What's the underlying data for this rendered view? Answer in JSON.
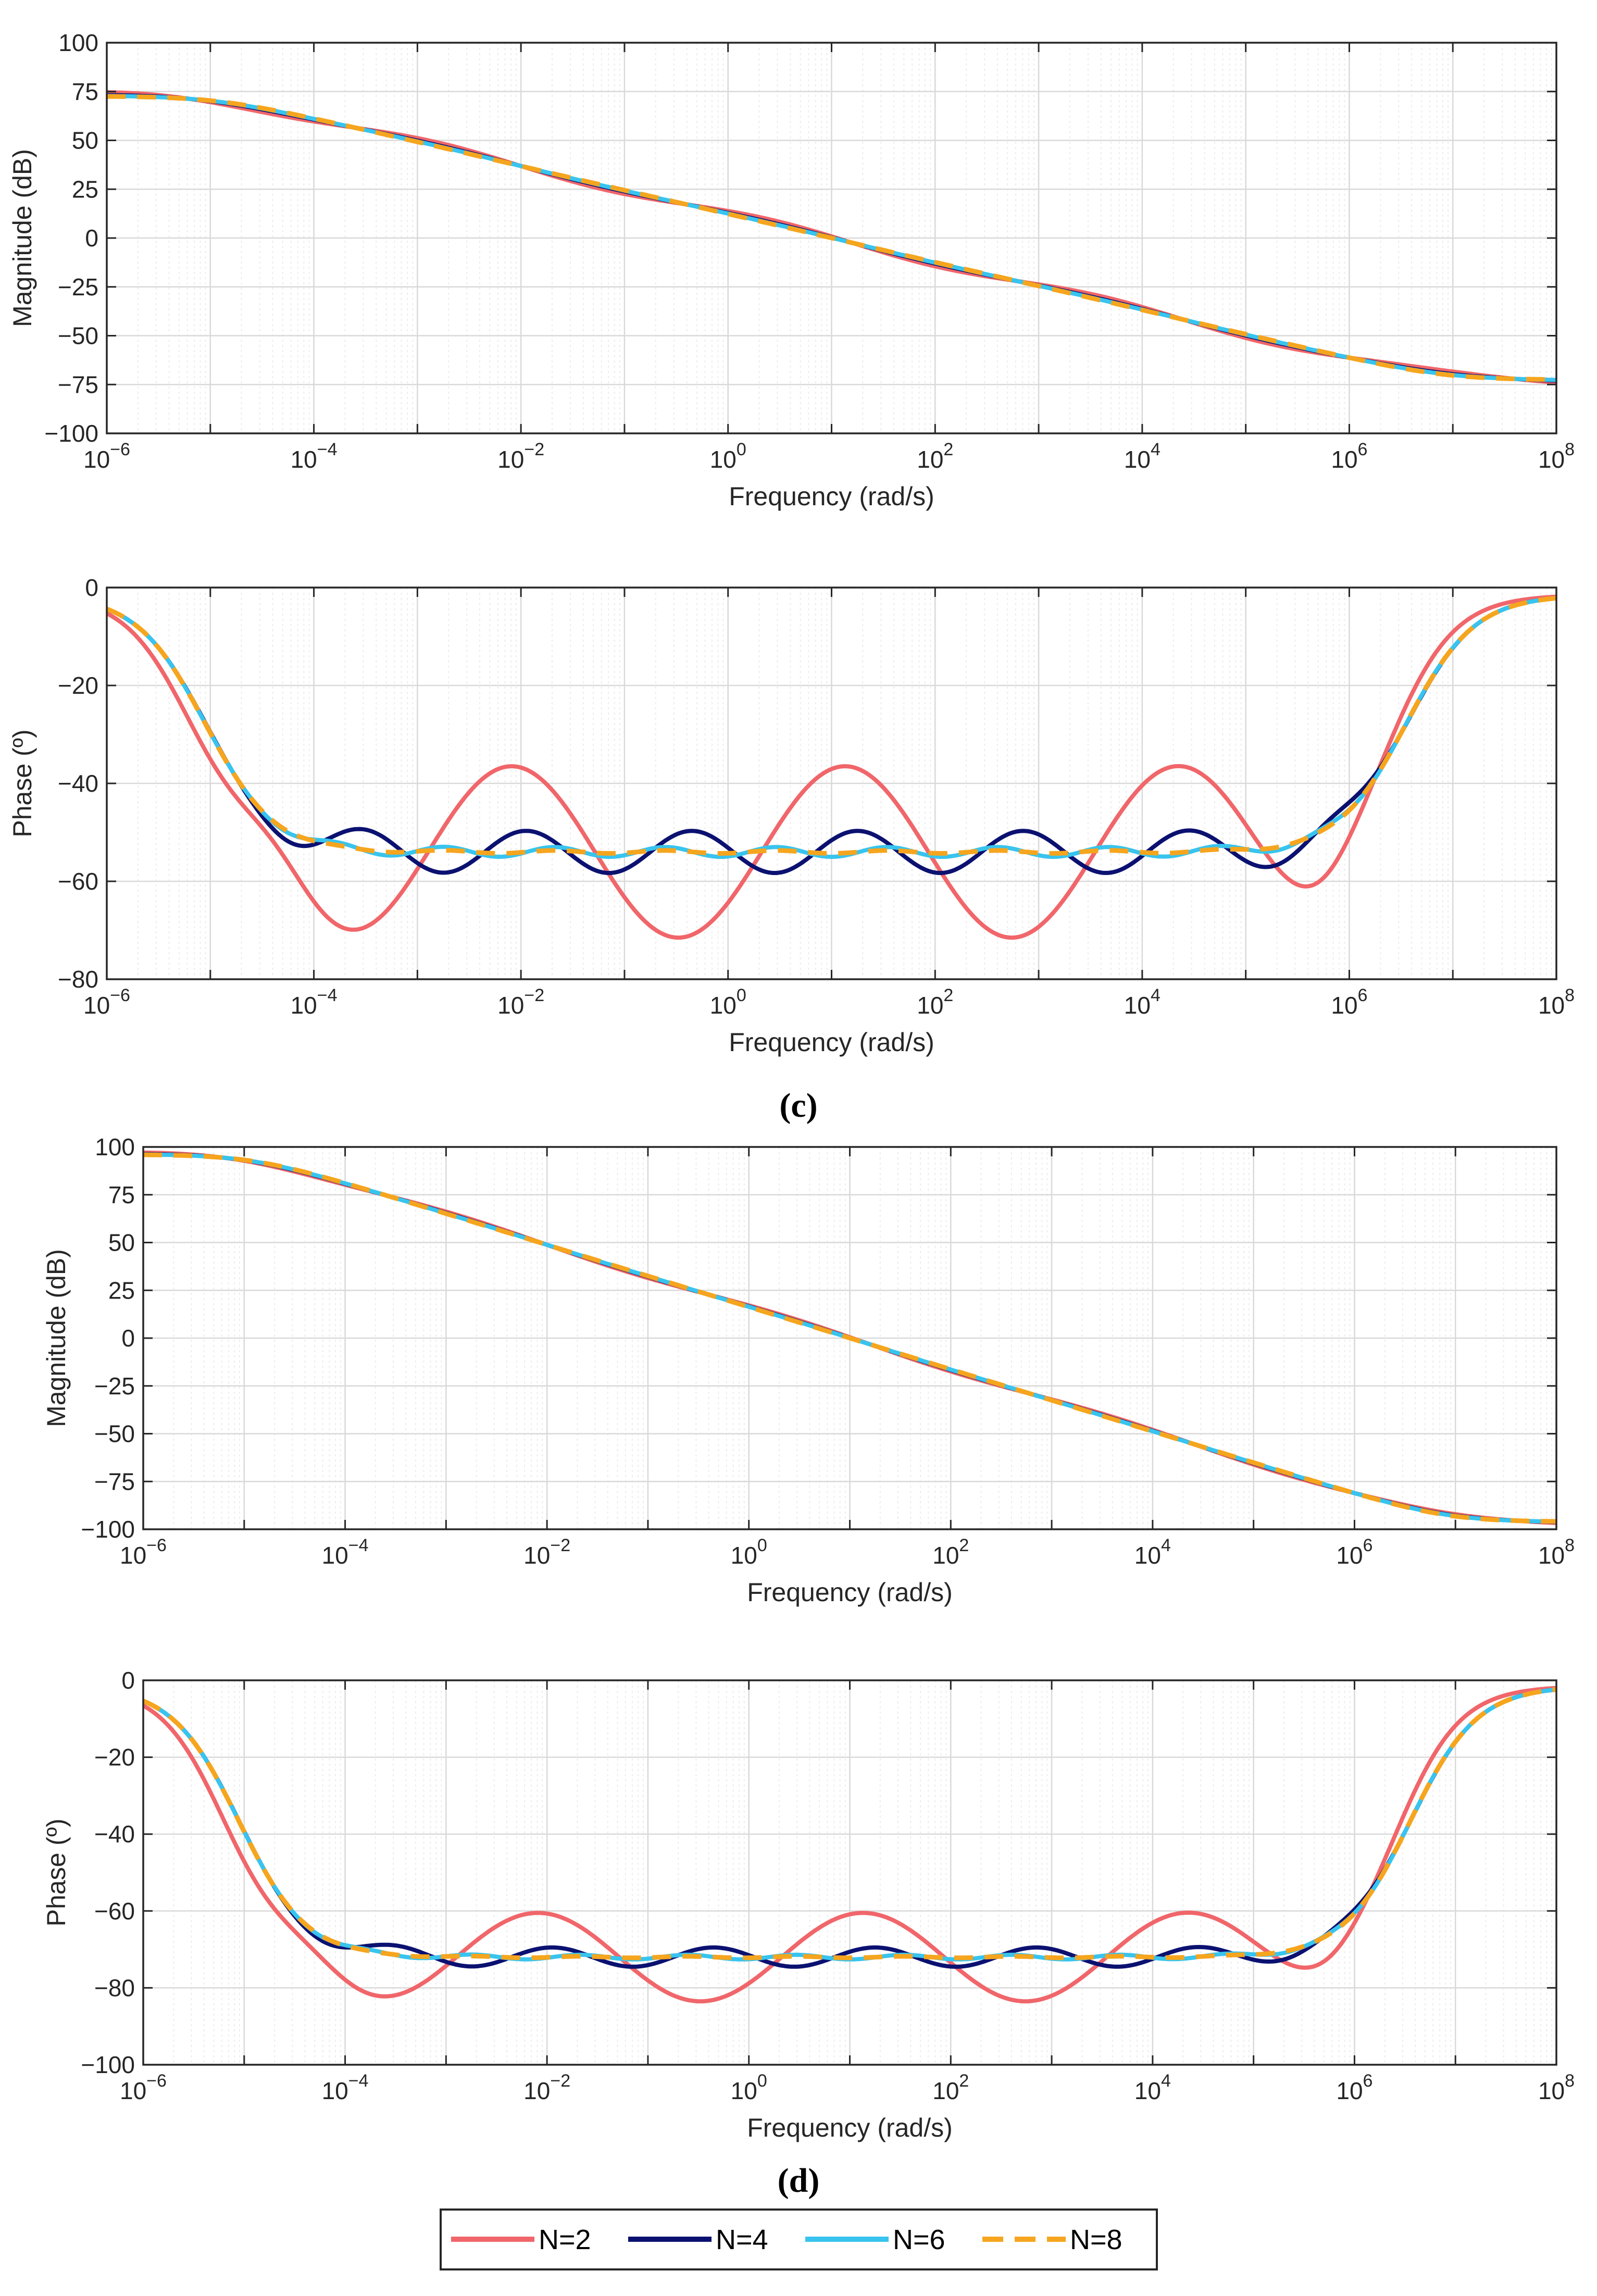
{
  "chart_data": [
    {
      "type": "line",
      "id": "c-mag",
      "panel": "c",
      "xlabel": "Frequency (rad/s)",
      "ylabel": "Magnitude (dB)",
      "xscale": "log",
      "xlim_exp": [
        -6,
        8
      ],
      "ylim": [
        -100,
        100
      ],
      "yticks": [
        100,
        75,
        50,
        25,
        0,
        -25,
        -50,
        -75,
        -100
      ],
      "mid": 0,
      "amp": 72.5,
      "wiggle": 2.2,
      "grid": true
    },
    {
      "type": "line",
      "id": "c-phase",
      "panel": "c",
      "xlabel": "Frequency (rad/s)",
      "ylabel": "Phase (º)",
      "xscale": "log",
      "xlim_exp": [
        -6,
        8
      ],
      "ylim": [
        -80,
        0
      ],
      "yticks": [
        0,
        -20,
        -40,
        -60,
        -80
      ],
      "base": -54,
      "osc": {
        "N=2": 17.5,
        "N=4": 4.3,
        "N=6": 1.0,
        "N=8": 0.3
      },
      "grid": true
    },
    {
      "type": "line",
      "id": "d-mag",
      "panel": "d",
      "xlabel": "Frequency (rad/s)",
      "ylabel": "Magnitude (dB)",
      "xscale": "log",
      "xlim_exp": [
        -6,
        8
      ],
      "ylim": [
        -100,
        100
      ],
      "yticks": [
        100,
        75,
        50,
        25,
        0,
        -25,
        -50,
        -75,
        -100
      ],
      "mid": 0,
      "amp": 96,
      "wiggle": 1.2,
      "grid": true
    },
    {
      "type": "line",
      "id": "d-phase",
      "panel": "d",
      "xlabel": "Frequency (rad/s)",
      "ylabel": "Phase (º)",
      "xscale": "log",
      "xlim_exp": [
        -6,
        8
      ],
      "ylim": [
        -100,
        0
      ],
      "yticks": [
        0,
        -20,
        -40,
        -60,
        -80,
        -100
      ],
      "base": -72,
      "osc": {
        "N=2": 11.5,
        "N=4": 2.5,
        "N=6": 0.6,
        "N=8": 0.2
      },
      "grid": true
    }
  ],
  "series": [
    {
      "name": "N=2",
      "color": "#F0666A",
      "dash": ""
    },
    {
      "name": "N=4",
      "color": "#0B1170",
      "dash": ""
    },
    {
      "name": "N=6",
      "color": "#38C4EE",
      "dash": ""
    },
    {
      "name": "N=8",
      "color": "#F5A51E",
      "dash": "36,22"
    }
  ],
  "panel_labels": {
    "c": "(c)",
    "d": "(d)"
  },
  "xtick_base": "10"
}
